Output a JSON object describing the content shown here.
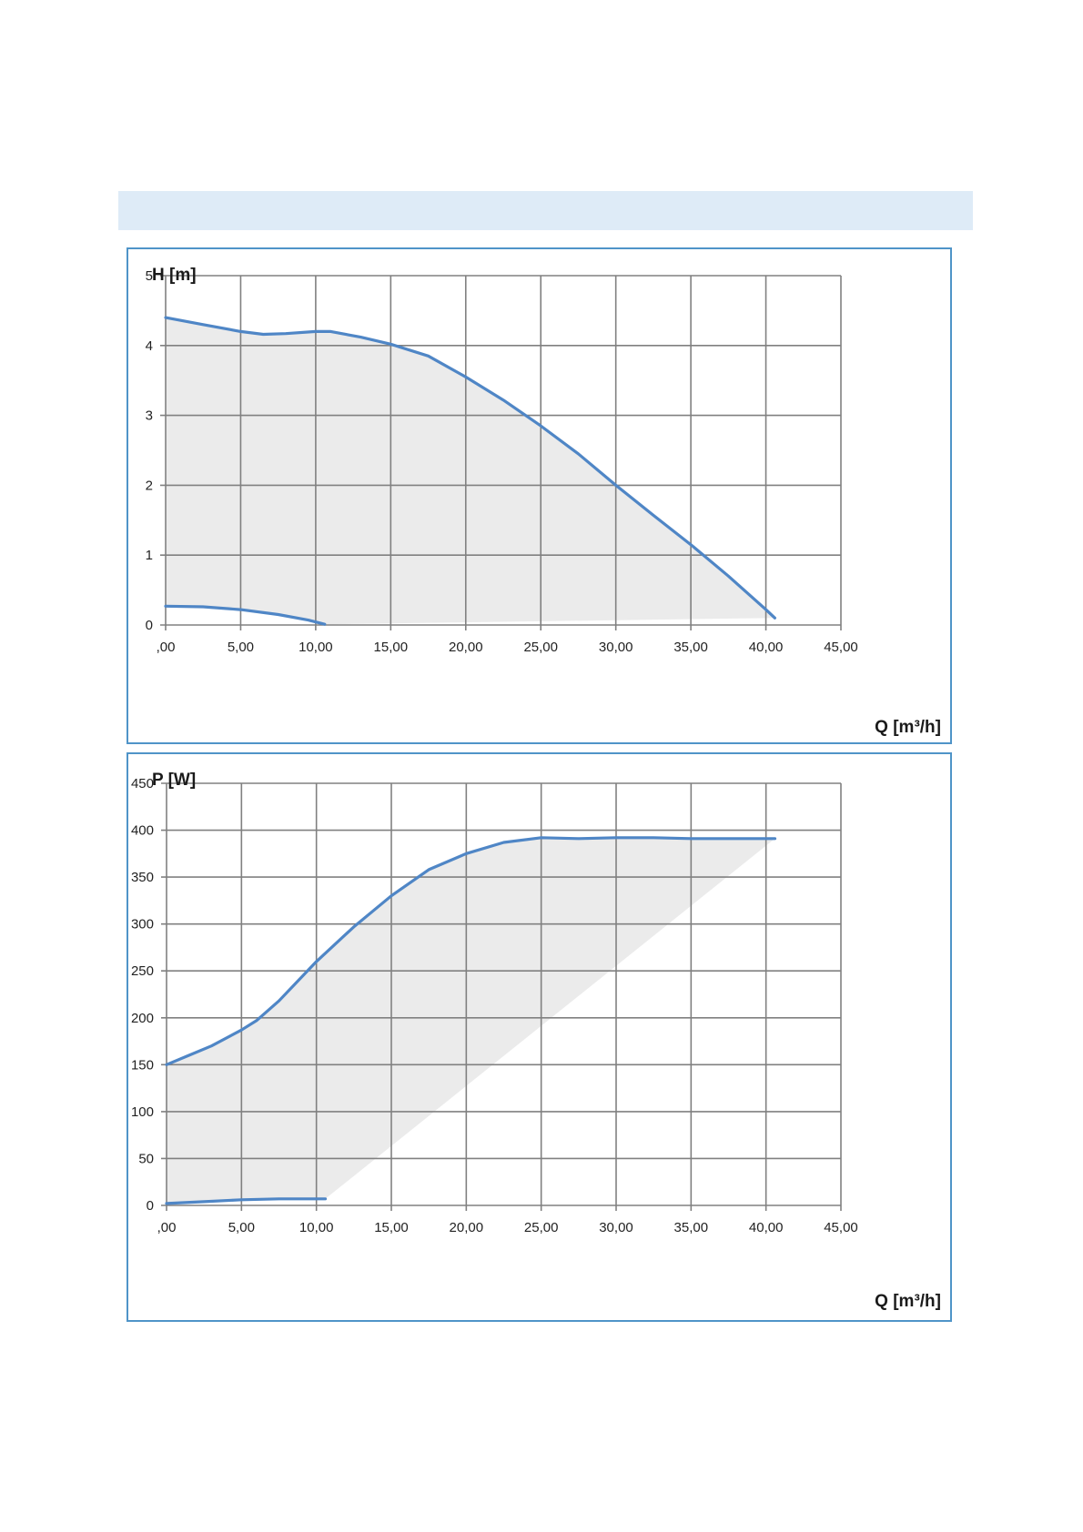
{
  "colors": {
    "curve": "#4f86c6",
    "fill": "#ebebeb",
    "grid": "#808080",
    "border": "#4f94c8",
    "band": "#deebf7"
  },
  "chart_data": [
    {
      "type": "area",
      "ylabel": "H [m]",
      "xlabel": "Q [m³/h]",
      "xlim": [
        0,
        45
      ],
      "ylim": [
        0,
        5
      ],
      "x_ticks": [
        ",00",
        "5,00",
        "10,00",
        "15,00",
        "20,00",
        "25,00",
        "30,00",
        "35,00",
        "40,00",
        "45,00"
      ],
      "y_ticks": [
        "0",
        "1",
        "2",
        "3",
        "4",
        "5"
      ],
      "grid": true,
      "series": [
        {
          "role": "max",
          "points": [
            [
              0,
              4.4
            ],
            [
              2.5,
              4.3
            ],
            [
              5,
              4.2
            ],
            [
              6.5,
              4.16
            ],
            [
              8,
              4.17
            ],
            [
              10,
              4.2
            ],
            [
              11,
              4.2
            ],
            [
              13,
              4.12
            ],
            [
              15,
              4.02
            ],
            [
              17.5,
              3.85
            ],
            [
              20,
              3.55
            ],
            [
              22.5,
              3.22
            ],
            [
              25,
              2.85
            ],
            [
              27.5,
              2.45
            ],
            [
              30,
              2.0
            ],
            [
              32.5,
              1.57
            ],
            [
              35,
              1.15
            ],
            [
              37.5,
              0.7
            ],
            [
              40,
              0.22
            ],
            [
              40.6,
              0.1
            ]
          ]
        },
        {
          "role": "min",
          "points": [
            [
              0,
              0.27
            ],
            [
              2.5,
              0.26
            ],
            [
              5,
              0.22
            ],
            [
              7.5,
              0.15
            ],
            [
              9.5,
              0.07
            ],
            [
              10.6,
              0.01
            ]
          ]
        }
      ],
      "fill_lower_boundary": [
        [
          10.6,
          0.01
        ],
        [
          40.6,
          0.1
        ]
      ]
    },
    {
      "type": "area",
      "ylabel": "P [W]",
      "xlabel": "Q [m³/h]",
      "xlim": [
        0,
        45
      ],
      "ylim": [
        0,
        450
      ],
      "x_ticks": [
        ",00",
        "5,00",
        "10,00",
        "15,00",
        "20,00",
        "25,00",
        "30,00",
        "35,00",
        "40,00",
        "45,00"
      ],
      "y_ticks": [
        "0",
        "50",
        "100",
        "150",
        "200",
        "250",
        "300",
        "350",
        "400",
        "450"
      ],
      "grid": true,
      "series": [
        {
          "role": "max",
          "points": [
            [
              0,
              150
            ],
            [
              1.5,
              160
            ],
            [
              3,
              170
            ],
            [
              5,
              187
            ],
            [
              6,
              197
            ],
            [
              7.5,
              218
            ],
            [
              10,
              260
            ],
            [
              12.5,
              297
            ],
            [
              15,
              330
            ],
            [
              17.5,
              358
            ],
            [
              20,
              375
            ],
            [
              22.5,
              387
            ],
            [
              25,
              392
            ],
            [
              27.5,
              391
            ],
            [
              30,
              392
            ],
            [
              32.5,
              392
            ],
            [
              35,
              391
            ],
            [
              37.5,
              391
            ],
            [
              40.6,
              391
            ]
          ]
        },
        {
          "role": "min",
          "points": [
            [
              0,
              2
            ],
            [
              2.5,
              4
            ],
            [
              5,
              6
            ],
            [
              7.5,
              7
            ],
            [
              10.6,
              7
            ]
          ]
        }
      ],
      "fill_lower_boundary": [
        [
          10.6,
          7
        ],
        [
          40.6,
          391
        ]
      ]
    }
  ]
}
